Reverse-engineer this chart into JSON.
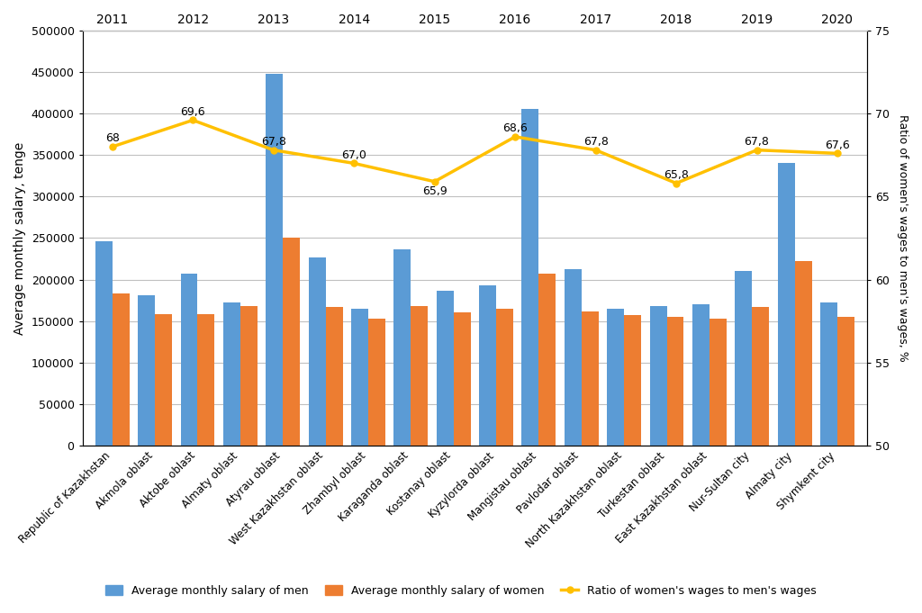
{
  "categories": [
    "Republic of Kazakhstan",
    "Akmola oblast",
    "Aktobe oblast",
    "Almaty oblast",
    "Atyrau oblast",
    "West Kazakhstan oblast",
    "Zhambyl oblast",
    "Karaganda oblast",
    "Kostanay oblast",
    "Kyzylorda oblast",
    "Mangistau oblast",
    "Pavlodar oblast",
    "North Kazakhstan oblast",
    "Turkestan oblast",
    "East Kazakhstan oblast",
    "Nur-Sultan city",
    "Almaty city",
    "Shymkent city"
  ],
  "years": [
    "2011",
    "2012",
    "2013",
    "2014",
    "2015",
    "2016",
    "2017",
    "2018",
    "2019",
    "2020"
  ],
  "men_salaries": [
    246000,
    181000,
    207000,
    172000,
    448000,
    227000,
    165000,
    236000,
    187000,
    193000,
    405000,
    212000,
    165000,
    168000,
    170000,
    210000,
    340000,
    172000
  ],
  "women_salaries": [
    183000,
    158000,
    158000,
    168000,
    250000,
    167000,
    153000,
    168000,
    160000,
    165000,
    207000,
    162000,
    157000,
    155000,
    153000,
    167000,
    222000,
    155000
  ],
  "ratio_values": [
    68.0,
    69.6,
    67.8,
    67.0,
    65.9,
    68.6,
    67.8,
    65.8,
    67.8,
    67.6
  ],
  "ratio_labels": [
    "68",
    "69,6",
    "67,8",
    "67,0",
    "65,9",
    "68,6",
    "67,8",
    "65,8",
    "67,8",
    "67,6"
  ],
  "bar_color_men": "#5B9BD5",
  "bar_color_women": "#ED7D31",
  "line_color": "#FFC000",
  "ylabel_left": "Average monthly salary, tenge",
  "ylabel_right": "Ratio of women's wages to men's wages, %",
  "ylim_left": [
    0,
    500000
  ],
  "ylim_right": [
    50,
    75
  ],
  "legend_men": "Average monthly salary of men",
  "legend_women": "Average monthly salary of women",
  "legend_ratio": "Ratio of women's wages to men's wages",
  "background_color": "#FFFFFF",
  "grid_color": "#C0C0C0"
}
